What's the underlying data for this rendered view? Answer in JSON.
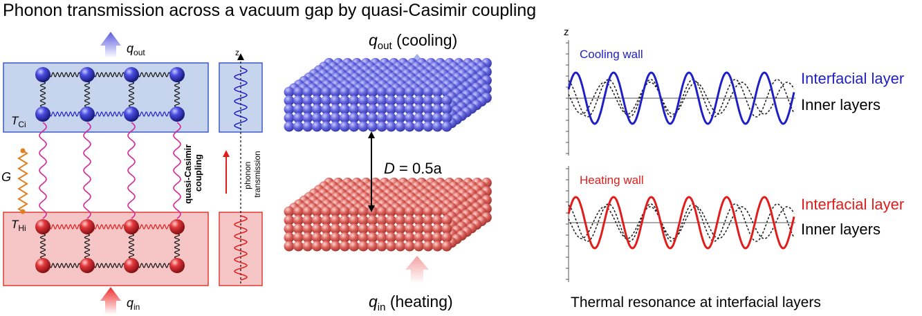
{
  "title": "Phonon transmission across a vacuum gap by quasi-Casimir coupling",
  "left_panel": {
    "q_out": {
      "base": "q",
      "sub": "out"
    },
    "q_in": {
      "base": "q",
      "sub": "in"
    },
    "t_cold": {
      "base": "T",
      "sub": "Ci"
    },
    "t_hot": {
      "base": "T",
      "sub": "Hi"
    },
    "conductance": "G",
    "coupling_label_line1": "quasi-Casimir",
    "coupling_label_line2": "coupling",
    "inset_axis": "z",
    "transmission_line1": "phonon",
    "transmission_line2": "transmission"
  },
  "middle_panel": {
    "q_out_label": {
      "base": "q",
      "sub": "out",
      "suffix": " (cooling)"
    },
    "q_in_label": {
      "base": "q",
      "sub": "in",
      "suffix": " (heating)"
    },
    "gap_label": {
      "var": "D",
      "rest": " = 0.5a"
    }
  },
  "right_panel": {
    "axis_label": "z",
    "top_plot": {
      "wall": "Cooling wall",
      "interfacial": "Interfacial layer",
      "inner": "Inner layers"
    },
    "bottom_plot": {
      "wall": "Heating wall",
      "interfacial": "Interfacial layer",
      "inner": "Inner layers"
    },
    "caption": "Thermal resonance at interfacial layers"
  },
  "colors": {
    "cool": "#1f1fc8",
    "hot": "#e21b1b",
    "cool_box": "#c6d4ee",
    "hot_box": "#f6c6c6",
    "spring_pink": "#d6259a",
    "spring_orange": "#e07f20"
  }
}
